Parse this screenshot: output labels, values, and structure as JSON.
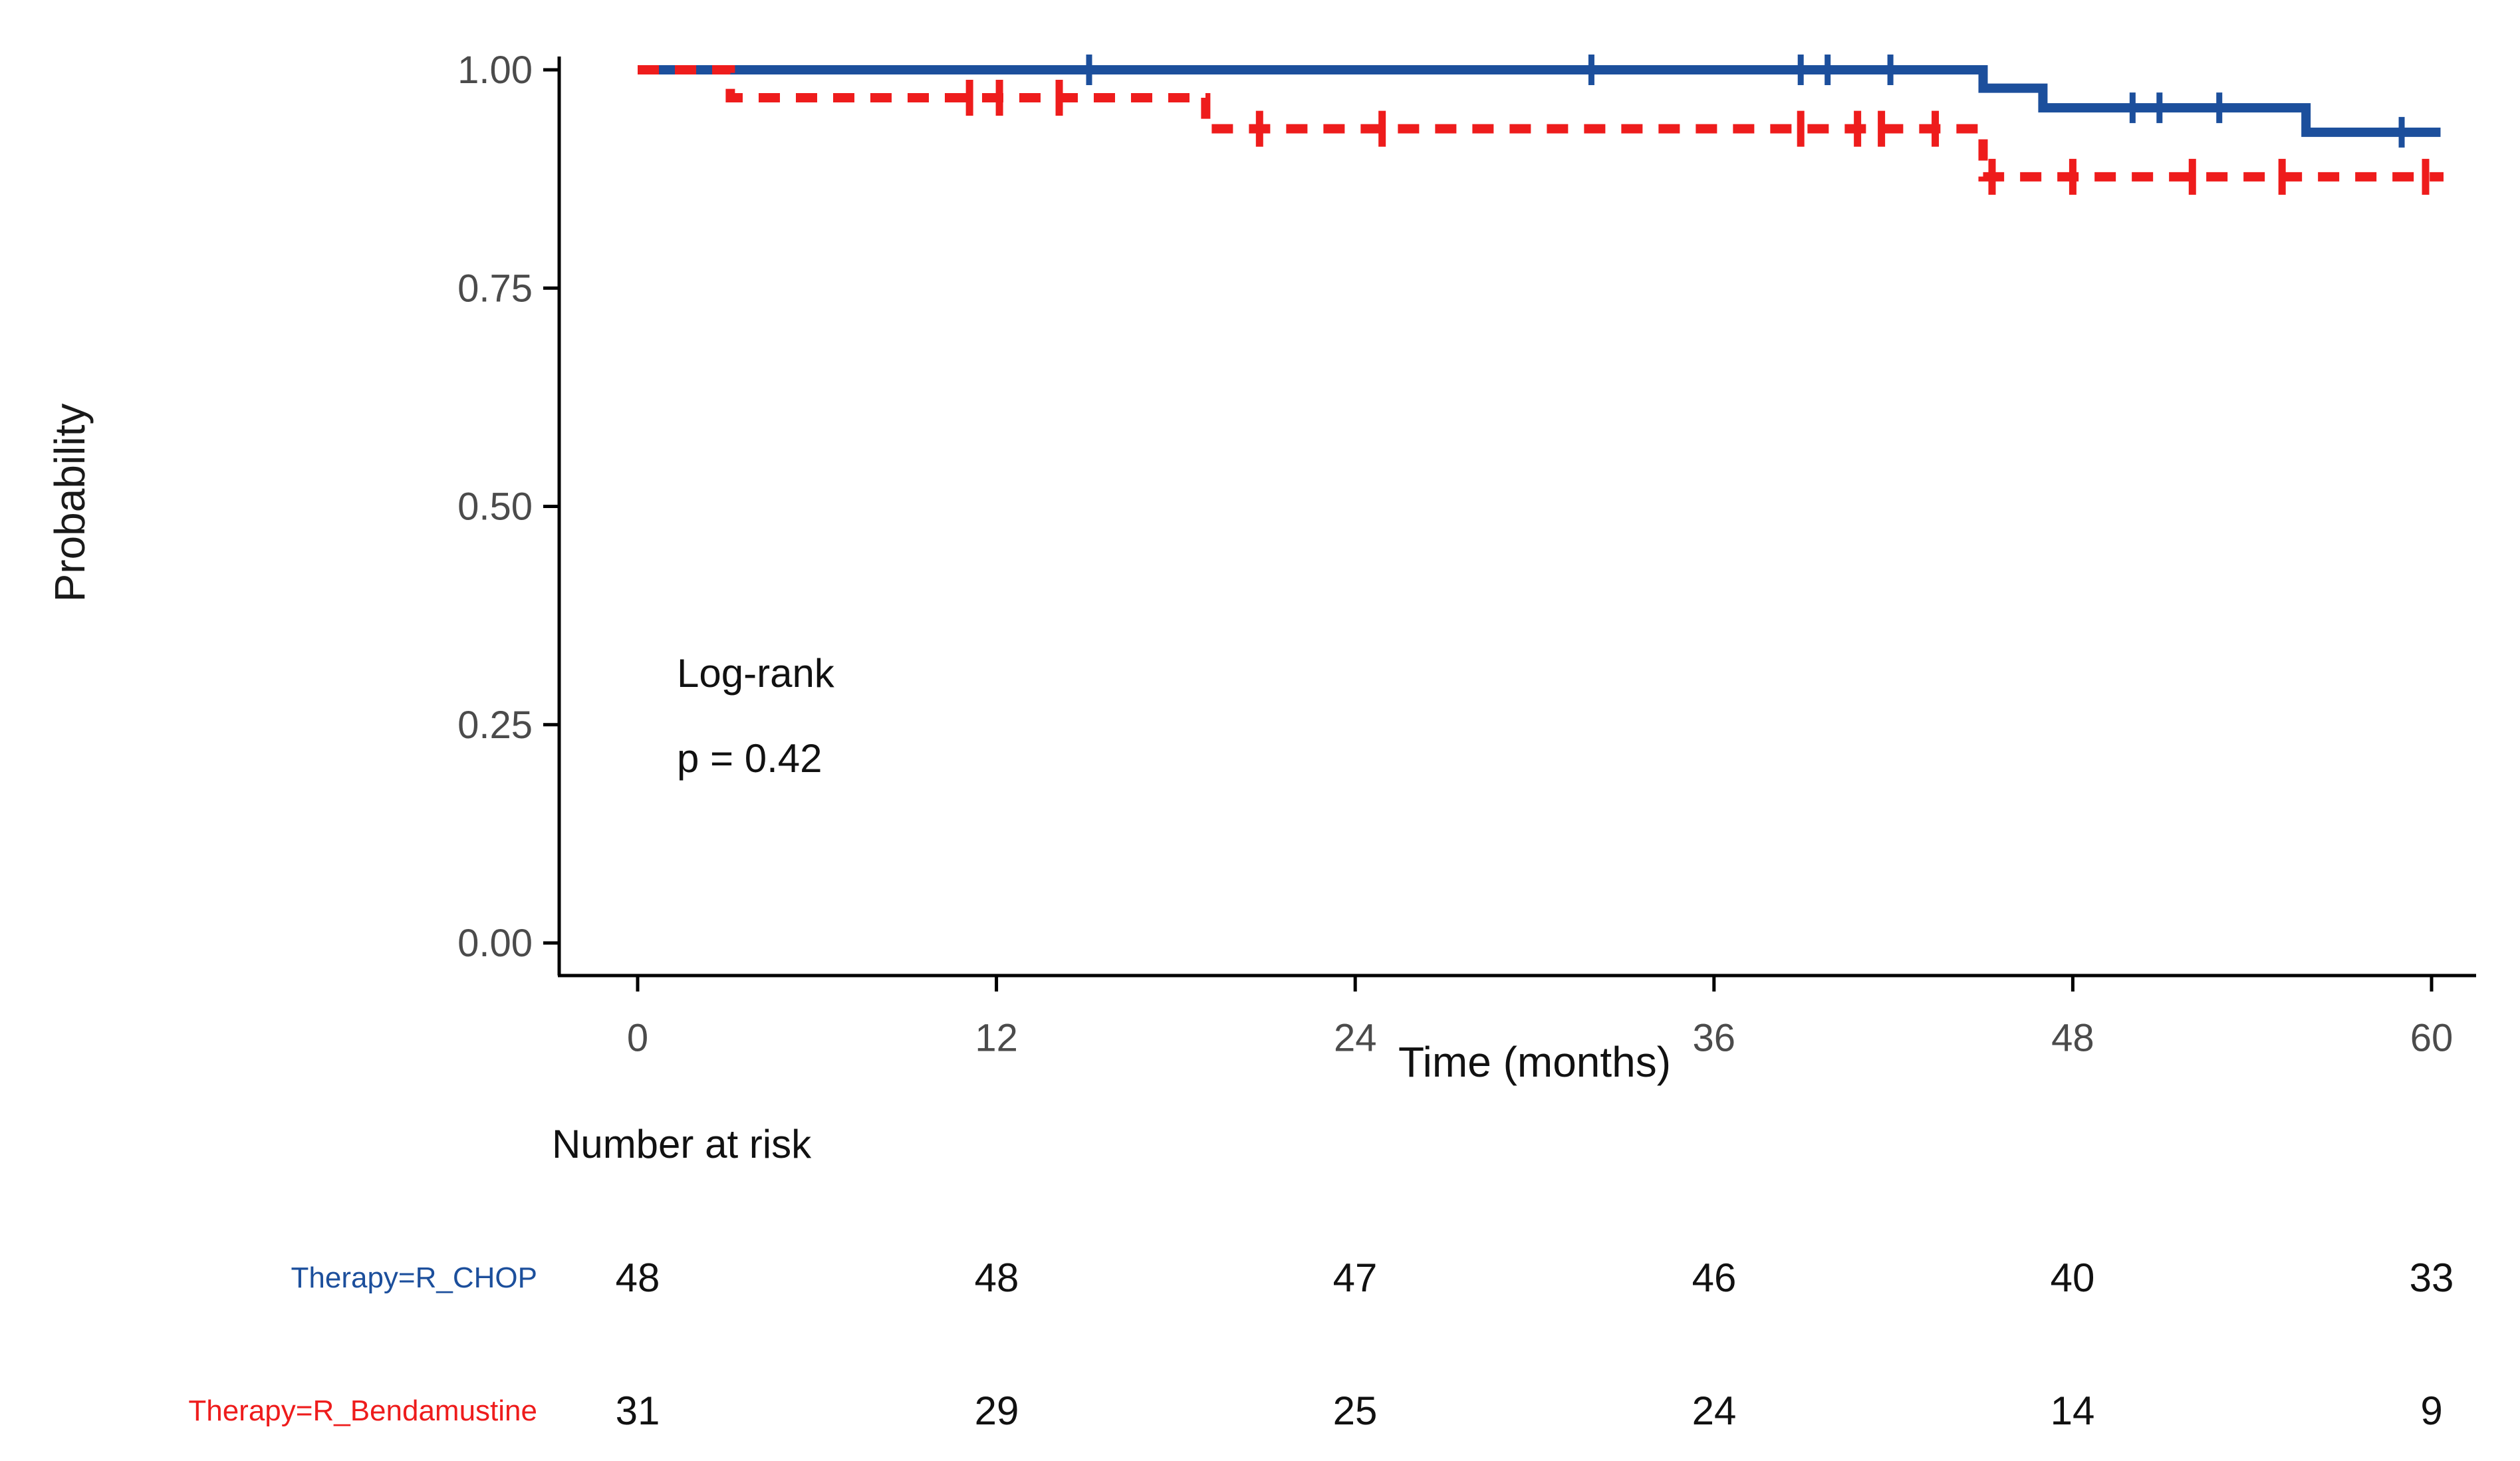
{
  "chart_data": {
    "type": "line",
    "subtype": "kaplan-meier-survival-step",
    "title": "",
    "xlabel": "Time (months)",
    "ylabel": "Probability",
    "x_axis": {
      "ticks": [
        0,
        12,
        24,
        36,
        48,
        60
      ],
      "range": [
        0,
        60
      ],
      "grid": false
    },
    "y_axis": {
      "tick_labels": [
        "1.00",
        "0.75",
        "0.50",
        "0.25",
        "0.00"
      ],
      "tick_values": [
        1.0,
        0.75,
        0.5,
        0.25,
        0.0
      ],
      "range": [
        0,
        1
      ],
      "grid": false
    },
    "annotation": {
      "test_name": "Log-rank",
      "p_value_text": "p = 0.42"
    },
    "colors": {
      "rchop_blue": "#1c4f9c",
      "bendamustine_red": "#ee1c1c",
      "tick_label_gray": "#4b4b4b",
      "axis_black": "#000000"
    },
    "series": [
      {
        "name": "Therapy=R_CHOP",
        "color": "#1c4f9c",
        "style": "solid",
        "steps": [
          [
            0,
            1.0
          ],
          [
            45,
            1.0
          ],
          [
            45,
            0.979
          ],
          [
            47,
            0.979
          ],
          [
            47,
            0.9565
          ],
          [
            55.8,
            0.9565
          ],
          [
            55.8,
            0.9285
          ],
          [
            60.3,
            0.9285
          ]
        ],
        "censors": [
          [
            15.1,
            1.0
          ],
          [
            31.9,
            1.0
          ],
          [
            38.9,
            1.0
          ],
          [
            39.8,
            1.0
          ],
          [
            41.9,
            1.0
          ],
          [
            50.0,
            0.9565
          ],
          [
            50.9,
            0.9565
          ],
          [
            52.9,
            0.9565
          ],
          [
            59.0,
            0.9285
          ]
        ]
      },
      {
        "name": "Therapy=R_Bendamustine",
        "color": "#ee1c1c",
        "style": "dashed",
        "steps": [
          [
            0,
            1.0
          ],
          [
            3.1,
            1.0
          ],
          [
            3.1,
            0.968
          ],
          [
            19,
            0.968
          ],
          [
            19,
            0.9325
          ],
          [
            45,
            0.9325
          ],
          [
            45,
            0.8775
          ],
          [
            60.4,
            0.8775
          ]
        ],
        "censors": [
          [
            11.1,
            0.968
          ],
          [
            12.1,
            0.968
          ],
          [
            14.1,
            0.968
          ],
          [
            20.8,
            0.9325
          ],
          [
            24.9,
            0.9325
          ],
          [
            38.9,
            0.9325
          ],
          [
            40.8,
            0.9325
          ],
          [
            41.6,
            0.9325
          ],
          [
            43.4,
            0.9325
          ],
          [
            45.3,
            0.8775
          ],
          [
            48,
            0.8775
          ],
          [
            52,
            0.8775
          ],
          [
            55,
            0.8775
          ],
          [
            59.8,
            0.8775
          ]
        ]
      }
    ],
    "risk_table": {
      "title": "Number at risk",
      "time_points": [
        0,
        12,
        24,
        36,
        48,
        60
      ],
      "rows": [
        {
          "label": "Therapy=R_CHOP",
          "color": "#1c4f9c",
          "counts": [
            48,
            48,
            47,
            46,
            40,
            33
          ]
        },
        {
          "label": "Therapy=R_Bendamustine",
          "color": "#ee1c1c",
          "counts": [
            31,
            29,
            25,
            24,
            14,
            9
          ]
        }
      ]
    }
  }
}
